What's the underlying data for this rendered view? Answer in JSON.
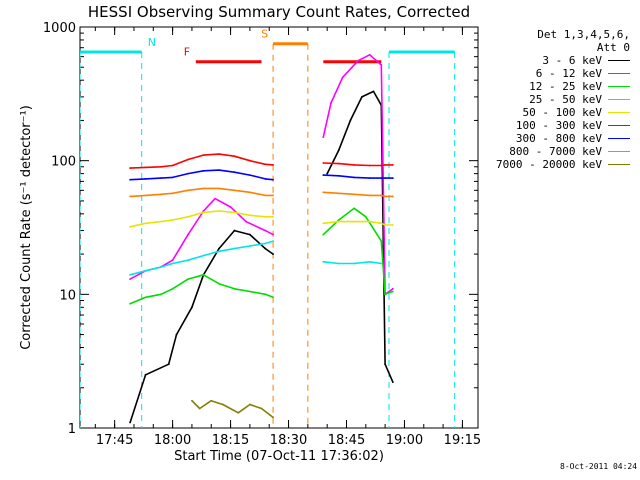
{
  "chart_data": {
    "type": "line",
    "title": "HESSI Observing Summary Count Rates, Corrected",
    "xlabel": "Start Time (07-Oct-11 17:36:02)",
    "ylabel": "Corrected Count Rate (s⁻¹ detector⁻¹)",
    "ylim": [
      1,
      1000
    ],
    "yscale": "log",
    "xlim_minutes_after_17:36:02": [
      0,
      103
    ],
    "x_tick_labels": [
      "17:45",
      "18:00",
      "18:15",
      "18:30",
      "18:45",
      "19:00",
      "19:15"
    ],
    "y_tick_labels": [
      "1",
      "10",
      "100",
      "1000"
    ],
    "legend_header": [
      "Det 1,3,4,5,6,",
      "Att 0"
    ],
    "legend_placement": "right, outside",
    "series": [
      {
        "name": "3 - 6 keV",
        "color": "#000000",
        "points": [
          [
            "17:49",
            1.1
          ],
          [
            "17:53",
            2.5
          ],
          [
            "17:59",
            3
          ],
          [
            "18:01",
            5
          ],
          [
            "18:05",
            8
          ],
          [
            "18:08",
            14
          ],
          [
            "18:12",
            22
          ],
          [
            "18:16",
            30
          ],
          [
            "18:20",
            28
          ],
          [
            "18:24",
            22
          ],
          [
            "18:26",
            20
          ],
          [
            "18:40",
            80
          ],
          [
            "18:43",
            120
          ],
          [
            "18:46",
            200
          ],
          [
            "18:49",
            300
          ],
          [
            "18:52",
            330
          ],
          [
            "18:54",
            260
          ],
          [
            "18:55",
            3
          ],
          [
            "18:57",
            2.2
          ]
        ]
      },
      {
        "name": "6 - 12 keV",
        "color": "#ff00ff",
        "points": [
          [
            "17:49",
            13
          ],
          [
            "17:53",
            15
          ],
          [
            "17:57",
            16
          ],
          [
            "18:00",
            18
          ],
          [
            "18:04",
            28
          ],
          [
            "18:08",
            42
          ],
          [
            "18:11",
            52
          ],
          [
            "18:15",
            45
          ],
          [
            "18:19",
            35
          ],
          [
            "18:24",
            30
          ],
          [
            "18:26",
            28
          ],
          [
            "18:39",
            150
          ],
          [
            "18:41",
            270
          ],
          [
            "18:44",
            420
          ],
          [
            "18:48",
            560
          ],
          [
            "18:51",
            620
          ],
          [
            "18:54",
            520
          ],
          [
            "18:55",
            10
          ],
          [
            "18:57",
            11
          ]
        ]
      },
      {
        "name": "12 - 25 keV",
        "color": "#00dd00",
        "points": [
          [
            "17:49",
            8.5
          ],
          [
            "17:53",
            9.5
          ],
          [
            "17:57",
            10
          ],
          [
            "18:00",
            11
          ],
          [
            "18:04",
            13
          ],
          [
            "18:08",
            14
          ],
          [
            "18:12",
            12
          ],
          [
            "18:16",
            11
          ],
          [
            "18:20",
            10.5
          ],
          [
            "18:24",
            10
          ],
          [
            "18:26",
            9.5
          ],
          [
            "18:39",
            28
          ],
          [
            "18:43",
            36
          ],
          [
            "18:47",
            44
          ],
          [
            "18:50",
            38
          ],
          [
            "18:54",
            25
          ],
          [
            "18:55",
            10
          ],
          [
            "18:57",
            10.5
          ]
        ]
      },
      {
        "name": "25 - 50 keV",
        "color": "#00e5e5",
        "points": [
          [
            "17:49",
            14
          ],
          [
            "17:53",
            15
          ],
          [
            "17:57",
            16
          ],
          [
            "18:00",
            17
          ],
          [
            "18:04",
            18
          ],
          [
            "18:08",
            19.5
          ],
          [
            "18:12",
            21
          ],
          [
            "18:16",
            22
          ],
          [
            "18:20",
            23
          ],
          [
            "18:24",
            24
          ],
          [
            "18:26",
            25
          ],
          [
            "18:39",
            17.5
          ],
          [
            "18:43",
            17
          ],
          [
            "18:47",
            17
          ],
          [
            "18:51",
            17.5
          ],
          [
            "18:54",
            17
          ]
        ]
      },
      {
        "name": "50 - 100 keV",
        "color": "#e5e500",
        "points": [
          [
            "17:49",
            32
          ],
          [
            "17:53",
            34
          ],
          [
            "17:57",
            35
          ],
          [
            "18:00",
            36
          ],
          [
            "18:04",
            38
          ],
          [
            "18:08",
            41
          ],
          [
            "18:12",
            42
          ],
          [
            "18:16",
            41
          ],
          [
            "18:20",
            39
          ],
          [
            "18:24",
            38
          ],
          [
            "18:26",
            38
          ],
          [
            "18:39",
            34
          ],
          [
            "18:43",
            35
          ],
          [
            "18:47",
            35
          ],
          [
            "18:51",
            35
          ],
          [
            "18:54",
            34
          ],
          [
            "18:55",
            33
          ],
          [
            "18:57",
            33
          ]
        ]
      },
      {
        "name": "100 - 300 keV",
        "color": "#ff0000",
        "points": [
          [
            "17:49",
            88
          ],
          [
            "17:53",
            89
          ],
          [
            "17:57",
            90
          ],
          [
            "18:00",
            92
          ],
          [
            "18:04",
            102
          ],
          [
            "18:08",
            110
          ],
          [
            "18:12",
            112
          ],
          [
            "18:16",
            108
          ],
          [
            "18:20",
            100
          ],
          [
            "18:24",
            94
          ],
          [
            "18:26",
            93
          ],
          [
            "18:39",
            96
          ],
          [
            "18:43",
            95
          ],
          [
            "18:47",
            93
          ],
          [
            "18:51",
            92
          ],
          [
            "18:54",
            92
          ],
          [
            "18:55",
            93
          ],
          [
            "18:57",
            93
          ]
        ]
      },
      {
        "name": "300 - 800 keV",
        "color": "#0000ff",
        "points": [
          [
            "17:49",
            72
          ],
          [
            "17:53",
            73
          ],
          [
            "17:57",
            74
          ],
          [
            "18:00",
            75
          ],
          [
            "18:04",
            80
          ],
          [
            "18:08",
            84
          ],
          [
            "18:12",
            85
          ],
          [
            "18:16",
            82
          ],
          [
            "18:20",
            78
          ],
          [
            "18:24",
            73
          ],
          [
            "18:26",
            72
          ],
          [
            "18:39",
            78
          ],
          [
            "18:43",
            77
          ],
          [
            "18:47",
            75
          ],
          [
            "18:51",
            74
          ],
          [
            "18:54",
            74
          ],
          [
            "18:55",
            74
          ],
          [
            "18:57",
            74
          ]
        ]
      },
      {
        "name": "800 - 7000 keV",
        "color": "#ff8000",
        "points": [
          [
            "17:49",
            54
          ],
          [
            "17:53",
            55
          ],
          [
            "17:57",
            56
          ],
          [
            "18:00",
            57
          ],
          [
            "18:04",
            60
          ],
          [
            "18:08",
            62
          ],
          [
            "18:12",
            62
          ],
          [
            "18:16",
            60
          ],
          [
            "18:20",
            58
          ],
          [
            "18:24",
            55
          ],
          [
            "18:26",
            55
          ],
          [
            "18:39",
            58
          ],
          [
            "18:43",
            57
          ],
          [
            "18:47",
            56
          ],
          [
            "18:51",
            55
          ],
          [
            "18:54",
            55
          ],
          [
            "18:55",
            54
          ],
          [
            "18:57",
            54
          ]
        ]
      },
      {
        "name": "7000 - 20000 keV",
        "color": "#808000",
        "points": [
          [
            "18:05",
            1.6
          ],
          [
            "18:07",
            1.4
          ],
          [
            "18:10",
            1.6
          ],
          [
            "18:13",
            1.5
          ],
          [
            "18:17",
            1.3
          ],
          [
            "18:20",
            1.5
          ],
          [
            "18:23",
            1.4
          ],
          [
            "18:26",
            1.2
          ]
        ]
      }
    ],
    "flags": [
      {
        "label": "N",
        "color": "#00e5e5",
        "segments": [
          [
            "17:36:02",
            "17:52"
          ],
          [
            "18:56",
            "19:13"
          ]
        ]
      },
      {
        "label": "F",
        "color": "#ff0000",
        "segments": [
          [
            "18:06",
            "18:23"
          ],
          [
            "18:39",
            "18:54"
          ]
        ]
      },
      {
        "label": "S",
        "color": "#ff8000",
        "segments": [
          [
            "18:26",
            "18:35"
          ]
        ]
      }
    ],
    "flag_values": {
      "N": 650,
      "F": 550,
      "S": 750
    }
  },
  "footer": {
    "stamp": "8-Oct-2011 04:24"
  }
}
